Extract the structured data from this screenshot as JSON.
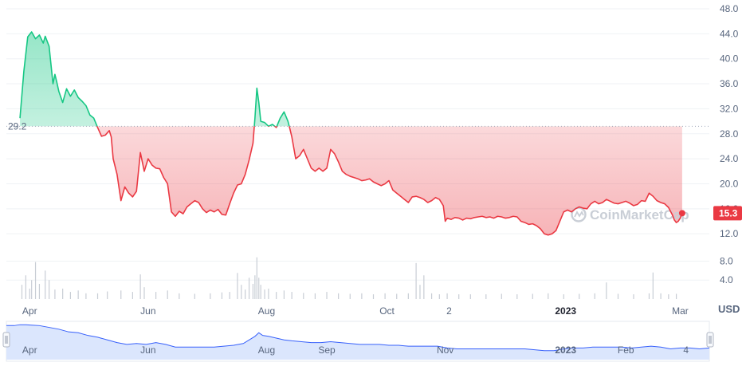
{
  "chart_data": {
    "type": "line",
    "unit_label": "USD",
    "watermark": "CoinMarketCap",
    "reference_value": 29.2,
    "reference_label": "29.2",
    "last_value": 15.3,
    "last_label": "15.3",
    "ylim": [
      9.6,
      49.4
    ],
    "volume_ylim": [
      0,
      10.6
    ],
    "y_ticks": [
      {
        "value": 48.0,
        "label": "48.0"
      },
      {
        "value": 44.0,
        "label": "44.0"
      },
      {
        "value": 40.0,
        "label": "40.0"
      },
      {
        "value": 36.0,
        "label": "36.0"
      },
      {
        "value": 32.0,
        "label": "32.0"
      },
      {
        "value": 28.0,
        "label": "28.0"
      },
      {
        "value": 24.0,
        "label": "24.0"
      },
      {
        "value": 20.0,
        "label": "20.0"
      },
      {
        "value": 16.0,
        "label": "16.0"
      },
      {
        "value": 12.0,
        "label": "12.0"
      }
    ],
    "volume_ticks": [
      {
        "value": 8.0,
        "label": "8.0"
      },
      {
        "value": 4.0,
        "label": "4.0"
      }
    ],
    "x_ticks": [
      {
        "label": "Apr",
        "x": 5,
        "bold": false
      },
      {
        "label": "Jun",
        "x": 66,
        "bold": false
      },
      {
        "label": "Aug",
        "x": 127,
        "bold": false
      },
      {
        "label": "Oct",
        "x": 189,
        "bold": false
      },
      {
        "label": "2",
        "x": 221,
        "bold": false
      },
      {
        "label": "2023",
        "x": 281,
        "bold": true
      },
      {
        "label": "Mar",
        "x": 340,
        "bold": false
      }
    ],
    "navigator_ticks": [
      {
        "label": "Apr",
        "x": 5,
        "bold": false
      },
      {
        "label": "Jun",
        "x": 66,
        "bold": false
      },
      {
        "label": "Aug",
        "x": 127,
        "bold": false
      },
      {
        "label": "Sep",
        "x": 158,
        "bold": false
      },
      {
        "label": "Nov",
        "x": 219,
        "bold": false
      },
      {
        "label": "2023",
        "x": 281,
        "bold": true
      },
      {
        "label": "Feb",
        "x": 312,
        "bold": false
      },
      {
        "label": "4",
        "x": 343,
        "bold": false
      }
    ],
    "x_range": [
      -7,
      355
    ],
    "series": [
      {
        "points": [
          [
            0,
            30.5
          ],
          [
            2,
            38
          ],
          [
            4,
            43.5
          ],
          [
            6,
            44.3
          ],
          [
            8,
            43.2
          ],
          [
            10,
            43.8
          ],
          [
            12,
            42.5
          ],
          [
            13,
            43.6
          ],
          [
            15,
            42.0
          ],
          [
            17,
            36.0
          ],
          [
            18,
            37.5
          ],
          [
            19,
            36.2
          ],
          [
            20,
            34.8
          ],
          [
            22,
            33.0
          ],
          [
            24,
            35.2
          ],
          [
            26,
            34.0
          ],
          [
            28,
            35.0
          ],
          [
            30,
            33.8
          ],
          [
            32,
            33.2
          ],
          [
            34,
            32.5
          ],
          [
            36,
            31.0
          ],
          [
            38,
            30.5
          ],
          [
            40,
            29.0
          ],
          [
            42,
            27.6
          ],
          [
            44,
            27.8
          ],
          [
            46,
            28.5
          ],
          [
            47,
            27.5
          ],
          [
            48,
            24.0
          ],
          [
            50,
            21.5
          ],
          [
            52,
            17.3
          ],
          [
            54,
            19.5
          ],
          [
            56,
            18.5
          ],
          [
            58,
            17.9
          ],
          [
            60,
            18.8
          ],
          [
            62,
            25.0
          ],
          [
            64,
            22.0
          ],
          [
            66,
            24.0
          ],
          [
            68,
            23.0
          ],
          [
            70,
            22.5
          ],
          [
            72,
            22.4
          ],
          [
            74,
            21.0
          ],
          [
            76,
            20.0
          ],
          [
            78,
            15.5
          ],
          [
            80,
            14.8
          ],
          [
            82,
            15.6
          ],
          [
            84,
            15.2
          ],
          [
            86,
            16.3
          ],
          [
            88,
            16.8
          ],
          [
            90,
            17.3
          ],
          [
            92,
            17.0
          ],
          [
            94,
            16.0
          ],
          [
            96,
            15.4
          ],
          [
            98,
            15.8
          ],
          [
            100,
            15.5
          ],
          [
            102,
            15.9
          ],
          [
            104,
            15.1
          ],
          [
            106,
            15.0
          ],
          [
            108,
            16.8
          ],
          [
            110,
            18.5
          ],
          [
            112,
            19.8
          ],
          [
            114,
            20.0
          ],
          [
            116,
            21.5
          ],
          [
            118,
            23.8
          ],
          [
            120,
            26.5
          ],
          [
            121,
            30.5
          ],
          [
            122,
            35.3
          ],
          [
            123,
            33.0
          ],
          [
            124,
            30.0
          ],
          [
            126,
            29.8
          ],
          [
            128,
            29.2
          ],
          [
            130,
            29.5
          ],
          [
            132,
            29.0
          ],
          [
            134,
            30.5
          ],
          [
            136,
            31.5
          ],
          [
            138,
            30.0
          ],
          [
            139,
            28.8
          ],
          [
            140,
            27.5
          ],
          [
            142,
            24.0
          ],
          [
            144,
            24.5
          ],
          [
            146,
            25.5
          ],
          [
            148,
            24.0
          ],
          [
            150,
            22.5
          ],
          [
            152,
            22.0
          ],
          [
            154,
            22.5
          ],
          [
            156,
            22.0
          ],
          [
            158,
            22.5
          ],
          [
            160,
            25.5
          ],
          [
            162,
            24.8
          ],
          [
            164,
            23.5
          ],
          [
            166,
            22.0
          ],
          [
            168,
            21.5
          ],
          [
            170,
            21.2
          ],
          [
            172,
            21.0
          ],
          [
            174,
            20.8
          ],
          [
            176,
            20.5
          ],
          [
            178,
            20.6
          ],
          [
            180,
            20.8
          ],
          [
            182,
            20.3
          ],
          [
            184,
            20.0
          ],
          [
            186,
            19.7
          ],
          [
            188,
            20.0
          ],
          [
            190,
            20.5
          ],
          [
            192,
            19.0
          ],
          [
            194,
            18.5
          ],
          [
            196,
            18.0
          ],
          [
            198,
            17.5
          ],
          [
            200,
            17.0
          ],
          [
            202,
            17.9
          ],
          [
            204,
            18.0
          ],
          [
            206,
            17.8
          ],
          [
            208,
            17.5
          ],
          [
            210,
            17.0
          ],
          [
            212,
            17.3
          ],
          [
            214,
            17.8
          ],
          [
            216,
            17.5
          ],
          [
            218,
            16.5
          ],
          [
            219,
            14.0
          ],
          [
            220,
            14.5
          ],
          [
            222,
            14.3
          ],
          [
            224,
            14.6
          ],
          [
            226,
            14.5
          ],
          [
            228,
            14.2
          ],
          [
            230,
            14.5
          ],
          [
            232,
            14.4
          ],
          [
            234,
            14.6
          ],
          [
            236,
            14.7
          ],
          [
            238,
            14.8
          ],
          [
            240,
            14.6
          ],
          [
            242,
            14.7
          ],
          [
            244,
            14.5
          ],
          [
            246,
            14.8
          ],
          [
            248,
            14.7
          ],
          [
            250,
            14.5
          ],
          [
            252,
            14.6
          ],
          [
            254,
            14.8
          ],
          [
            256,
            14.7
          ],
          [
            258,
            14.0
          ],
          [
            260,
            13.8
          ],
          [
            262,
            13.5
          ],
          [
            264,
            13.6
          ],
          [
            266,
            13.3
          ],
          [
            268,
            12.8
          ],
          [
            270,
            12.0
          ],
          [
            272,
            11.8
          ],
          [
            274,
            12.0
          ],
          [
            276,
            12.5
          ],
          [
            278,
            14.0
          ],
          [
            280,
            15.5
          ],
          [
            282,
            15.8
          ],
          [
            284,
            15.5
          ],
          [
            286,
            16.0
          ],
          [
            288,
            16.3
          ],
          [
            290,
            16.1
          ],
          [
            292,
            16.0
          ],
          [
            294,
            16.8
          ],
          [
            296,
            17.2
          ],
          [
            298,
            16.8
          ],
          [
            300,
            17.0
          ],
          [
            302,
            17.5
          ],
          [
            304,
            17.2
          ],
          [
            306,
            16.9
          ],
          [
            308,
            16.8
          ],
          [
            310,
            17.0
          ],
          [
            312,
            17.2
          ],
          [
            314,
            16.9
          ],
          [
            316,
            16.5
          ],
          [
            318,
            16.7
          ],
          [
            320,
            17.3
          ],
          [
            322,
            17.2
          ],
          [
            324,
            18.5
          ],
          [
            326,
            18.0
          ],
          [
            328,
            17.3
          ],
          [
            330,
            17.0
          ],
          [
            332,
            16.8
          ],
          [
            334,
            16.2
          ],
          [
            336,
            15.0
          ],
          [
            337,
            14.2
          ],
          [
            338,
            13.8
          ],
          [
            339,
            14.0
          ],
          [
            340,
            14.5
          ],
          [
            341,
            15.3
          ]
        ]
      }
    ],
    "volume": [
      [
        1,
        3.0
      ],
      [
        3,
        5.0
      ],
      [
        5,
        2.2
      ],
      [
        6,
        4.0
      ],
      [
        8,
        7.8
      ],
      [
        10,
        3.2
      ],
      [
        13,
        6.0
      ],
      [
        15,
        4.0
      ],
      [
        18,
        2.0
      ],
      [
        22,
        2.2
      ],
      [
        26,
        1.5
      ],
      [
        30,
        1.8
      ],
      [
        34,
        1.2
      ],
      [
        40,
        1.2
      ],
      [
        45,
        1.6
      ],
      [
        52,
        1.8
      ],
      [
        58,
        1.5
      ],
      [
        62,
        5.2
      ],
      [
        64,
        2.5
      ],
      [
        70,
        1.5
      ],
      [
        76,
        1.8
      ],
      [
        82,
        1.2
      ],
      [
        90,
        1.1
      ],
      [
        98,
        1.2
      ],
      [
        104,
        1.4
      ],
      [
        108,
        1.5
      ],
      [
        112,
        5.5
      ],
      [
        114,
        3.0
      ],
      [
        116,
        2.0
      ],
      [
        118,
        4.5
      ],
      [
        120,
        3.2
      ],
      [
        121,
        5.0
      ],
      [
        122,
        8.8
      ],
      [
        123,
        4.5
      ],
      [
        124,
        3.0
      ],
      [
        126,
        2.0
      ],
      [
        128,
        2.2
      ],
      [
        132,
        1.5
      ],
      [
        136,
        1.8
      ],
      [
        140,
        1.5
      ],
      [
        146,
        1.3
      ],
      [
        152,
        1.2
      ],
      [
        158,
        1.5
      ],
      [
        164,
        1.2
      ],
      [
        170,
        1.1
      ],
      [
        176,
        1.2
      ],
      [
        182,
        1.0
      ],
      [
        188,
        1.2
      ],
      [
        194,
        1.1
      ],
      [
        200,
        1.2
      ],
      [
        204,
        7.6
      ],
      [
        206,
        3.0
      ],
      [
        208,
        5.0
      ],
      [
        212,
        1.2
      ],
      [
        216,
        1.0
      ],
      [
        220,
        1.2
      ],
      [
        226,
        1.0
      ],
      [
        232,
        1.0
      ],
      [
        240,
        1.0
      ],
      [
        248,
        1.1
      ],
      [
        256,
        1.0
      ],
      [
        264,
        1.1
      ],
      [
        272,
        1.2
      ],
      [
        280,
        1.0
      ],
      [
        288,
        1.1
      ],
      [
        296,
        1.2
      ],
      [
        302,
        3.5
      ],
      [
        308,
        1.1
      ],
      [
        316,
        1.0
      ],
      [
        324,
        1.2
      ],
      [
        326,
        5.6
      ],
      [
        330,
        1.2
      ],
      [
        334,
        1.0
      ],
      [
        338,
        1.1
      ]
    ],
    "navigator": [
      [
        -7,
        38
      ],
      [
        -3,
        38
      ],
      [
        0,
        39
      ],
      [
        3,
        39
      ],
      [
        6,
        38.5
      ],
      [
        10,
        38
      ],
      [
        15,
        36
      ],
      [
        20,
        34
      ],
      [
        25,
        31
      ],
      [
        30,
        30
      ],
      [
        35,
        27
      ],
      [
        40,
        25
      ],
      [
        45,
        22
      ],
      [
        50,
        19
      ],
      [
        55,
        17
      ],
      [
        60,
        18
      ],
      [
        65,
        17
      ],
      [
        70,
        19
      ],
      [
        75,
        17
      ],
      [
        80,
        14
      ],
      [
        85,
        14
      ],
      [
        90,
        14
      ],
      [
        95,
        14
      ],
      [
        100,
        14
      ],
      [
        105,
        15
      ],
      [
        110,
        16
      ],
      [
        115,
        18
      ],
      [
        118,
        22
      ],
      [
        121,
        26
      ],
      [
        123,
        30
      ],
      [
        125,
        27
      ],
      [
        128,
        26
      ],
      [
        132,
        24
      ],
      [
        136,
        22
      ],
      [
        140,
        21
      ],
      [
        145,
        20
      ],
      [
        150,
        19
      ],
      [
        155,
        19
      ],
      [
        160,
        20
      ],
      [
        165,
        19
      ],
      [
        170,
        18
      ],
      [
        175,
        17
      ],
      [
        180,
        17
      ],
      [
        185,
        17
      ],
      [
        190,
        16
      ],
      [
        195,
        16
      ],
      [
        200,
        15
      ],
      [
        205,
        15
      ],
      [
        210,
        15
      ],
      [
        215,
        15
      ],
      [
        220,
        13
      ],
      [
        225,
        12
      ],
      [
        230,
        12
      ],
      [
        240,
        12
      ],
      [
        250,
        12
      ],
      [
        260,
        12
      ],
      [
        265,
        11
      ],
      [
        270,
        10
      ],
      [
        275,
        10
      ],
      [
        280,
        12
      ],
      [
        285,
        13
      ],
      [
        290,
        13
      ],
      [
        295,
        14
      ],
      [
        300,
        14
      ],
      [
        305,
        14
      ],
      [
        310,
        14
      ],
      [
        315,
        13
      ],
      [
        320,
        14
      ],
      [
        325,
        15
      ],
      [
        330,
        14
      ],
      [
        335,
        12
      ],
      [
        340,
        13
      ],
      [
        345,
        13
      ],
      [
        350,
        12
      ],
      [
        355,
        13
      ]
    ],
    "colors": {
      "up_line": "#16c784",
      "down_line": "#ea3943",
      "volume_bar": "#c8cdd5",
      "grid": "#eff2f5",
      "navigator_fill": "#dbe6fd",
      "navigator_line": "#3861fb",
      "last_badge": "#ea3943"
    }
  }
}
